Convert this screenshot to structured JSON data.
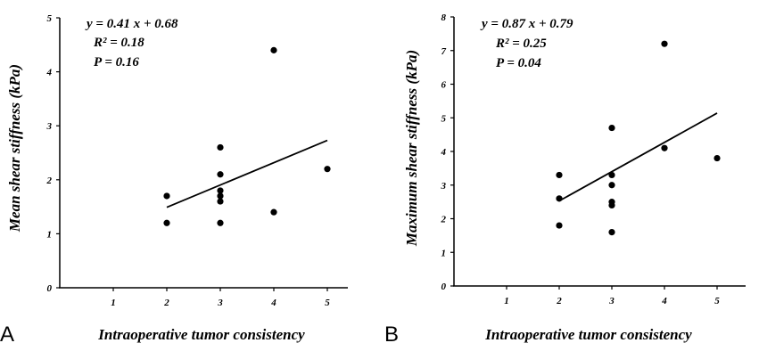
{
  "colors": {
    "axis": "#000000",
    "point": "#000000",
    "line": "#000000"
  },
  "chart_data": [
    {
      "type": "scatter",
      "panel_label": "A",
      "xlabel": "Intraoperative tumor consistency",
      "ylabel": "Mean shear stiffness (kPa)",
      "xlim": [
        0,
        5.5
      ],
      "ylim": [
        0,
        5
      ],
      "xticks": [
        1,
        2,
        3,
        4,
        5
      ],
      "yticks": [
        0,
        1,
        2,
        3,
        4,
        5
      ],
      "points": [
        {
          "x": 2,
          "y": 1.7
        },
        {
          "x": 2,
          "y": 1.2
        },
        {
          "x": 3,
          "y": 2.6
        },
        {
          "x": 3,
          "y": 2.1
        },
        {
          "x": 3,
          "y": 1.8
        },
        {
          "x": 3,
          "y": 1.7
        },
        {
          "x": 3,
          "y": 1.6
        },
        {
          "x": 3,
          "y": 1.2
        },
        {
          "x": 4,
          "y": 4.4
        },
        {
          "x": 4,
          "y": 1.4
        },
        {
          "x": 5,
          "y": 2.2
        }
      ],
      "regression": {
        "x_range": [
          2,
          5
        ],
        "y_start": 1.49,
        "y_end": 2.73
      },
      "annotations": [
        "y = 0.41 x + 0.68",
        "R² = 0.18",
        "P =  0.16"
      ]
    },
    {
      "type": "scatter",
      "panel_label": "B",
      "xlabel": "Intraoperative tumor consistency",
      "ylabel": "Maximum shear stiffness (kPa)",
      "xlim": [
        0,
        5.5
      ],
      "ylim": [
        0,
        8
      ],
      "xticks": [
        1,
        2,
        3,
        4,
        5
      ],
      "yticks": [
        0,
        1,
        2,
        3,
        4,
        5,
        6,
        7,
        8
      ],
      "points": [
        {
          "x": 2,
          "y": 3.3
        },
        {
          "x": 2,
          "y": 2.6
        },
        {
          "x": 2,
          "y": 1.8
        },
        {
          "x": 3,
          "y": 4.7
        },
        {
          "x": 3,
          "y": 3.3
        },
        {
          "x": 3,
          "y": 3.0
        },
        {
          "x": 3,
          "y": 2.5
        },
        {
          "x": 3,
          "y": 2.4
        },
        {
          "x": 3,
          "y": 1.6
        },
        {
          "x": 4,
          "y": 7.2
        },
        {
          "x": 4,
          "y": 4.1
        },
        {
          "x": 5,
          "y": 3.8
        }
      ],
      "regression": {
        "x_range": [
          2,
          5
        ],
        "y_start": 2.53,
        "y_end": 5.14
      },
      "annotations": [
        "y = 0.87 x + 0.79",
        "R² = 0.25",
        "P = 0.04"
      ]
    }
  ]
}
